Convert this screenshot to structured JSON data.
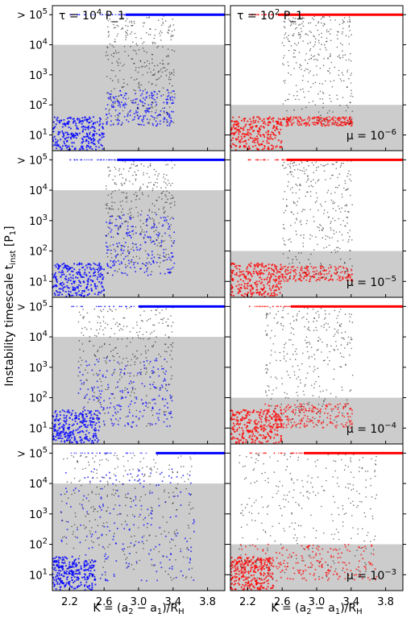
{
  "figure": {
    "ylabel": "Instability timescale t_inst [P_1]",
    "xlabel": "K = (a_2 − a_1)/R_H",
    "columns": [
      {
        "tau_label": "τ = 10^4 P_1",
        "color": "#0000ff"
      },
      {
        "tau_label": "τ = 10^2 P_1",
        "color": "#ff0000"
      }
    ],
    "rows": [
      {
        "mu_label": "μ = 10^−6"
      },
      {
        "mu_label": "μ = 10^−5"
      },
      {
        "mu_label": "μ = 10^−4"
      },
      {
        "mu_label": "μ = 10^−3"
      }
    ]
  },
  "chart_data": {
    "type": "scatter",
    "x_scale": "linear",
    "y_scale": "log",
    "xlim": [
      2.0,
      4.0
    ],
    "ylim": [
      3,
      200000
    ],
    "x_ticks": [
      2.2,
      2.6,
      3.0,
      3.4,
      3.8
    ],
    "y_ticks": [
      {
        "value": 10,
        "label": "10^1"
      },
      {
        "value": 100,
        "label": "10^2"
      },
      {
        "value": 1000,
        "label": "10^3"
      },
      {
        "value": 10000,
        "label": "10^4"
      },
      {
        "value": 100000,
        "label": "> 10^5"
      }
    ],
    "shaded_region_color": "#cccccc",
    "shaded_upper_y": {
      "τ = 10^4 P_1": 10000,
      "τ = 10^2 P_1": 100
    },
    "stable_color": "#000000",
    "grid": false,
    "panels": [
      {
        "row": 0,
        "col": 0,
        "edge_x": 2.6,
        "cap_x_start": 2.85,
        "cloud_x": [
          2.62,
          3.42
        ],
        "cloud_logy": [
          1.3,
          5.0
        ],
        "colored_upper_logy": 2.5
      },
      {
        "row": 0,
        "col": 1,
        "edge_x": 2.6,
        "cap_x_start": 2.55,
        "cloud_x": [
          2.6,
          3.42
        ],
        "cloud_logy": [
          1.3,
          5.0
        ],
        "colored_upper_logy": 1.6
      },
      {
        "row": 1,
        "col": 0,
        "edge_x": 2.6,
        "cap_x_start": 2.75,
        "cloud_x": [
          2.62,
          3.42
        ],
        "cloud_logy": [
          1.2,
          5.0
        ],
        "colored_upper_logy": 3.2
      },
      {
        "row": 1,
        "col": 1,
        "edge_x": 2.6,
        "cap_x_start": 2.65,
        "cloud_x": [
          2.6,
          3.42
        ],
        "cloud_logy": [
          1.0,
          5.0
        ],
        "colored_upper_logy": 1.5
      },
      {
        "row": 2,
        "col": 0,
        "edge_x": 2.55,
        "cap_x_start": 3.0,
        "cloud_x": [
          2.3,
          3.4
        ],
        "cloud_logy": [
          1.0,
          5.0
        ],
        "colored_upper_logy": 3.3
      },
      {
        "row": 2,
        "col": 1,
        "edge_x": 2.6,
        "cap_x_start": 2.7,
        "cloud_x": [
          2.4,
          3.42
        ],
        "cloud_logy": [
          1.0,
          5.0
        ],
        "colored_upper_logy": 1.8
      },
      {
        "row": 3,
        "col": 0,
        "edge_x": 2.5,
        "cap_x_start": 3.2,
        "cloud_x": [
          2.1,
          3.65
        ],
        "cloud_logy": [
          0.8,
          5.0
        ],
        "colored_upper_logy": 4.5
      },
      {
        "row": 3,
        "col": 1,
        "edge_x": 2.5,
        "cap_x_start": 2.85,
        "cloud_x": [
          2.1,
          3.7
        ],
        "cloud_logy": [
          0.8,
          5.0
        ],
        "colored_upper_logy": 2.0
      }
    ]
  }
}
